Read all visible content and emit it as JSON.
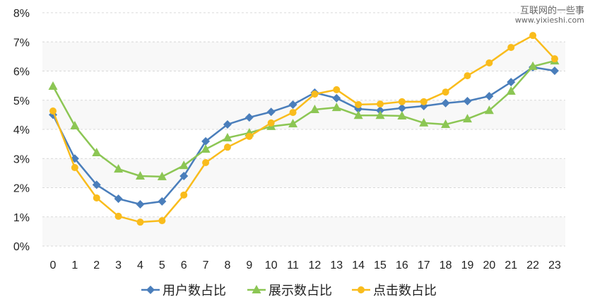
{
  "watermark": {
    "title": "互联网的一些事",
    "url": "www.yixieshi.com"
  },
  "chart_data": {
    "type": "line",
    "title": "",
    "xlabel": "",
    "ylabel": "",
    "categories": [
      "0",
      "1",
      "2",
      "3",
      "4",
      "5",
      "6",
      "7",
      "8",
      "9",
      "10",
      "11",
      "12",
      "13",
      "14",
      "15",
      "16",
      "17",
      "18",
      "19",
      "20",
      "21",
      "22",
      "23"
    ],
    "ylim": [
      0,
      8
    ],
    "yticks": [
      "0%",
      "1%",
      "2%",
      "3%",
      "4%",
      "5%",
      "6%",
      "7%",
      "8%"
    ],
    "grid": true,
    "legend": "bottom",
    "series": [
      {
        "name": "用户数占比",
        "color": "#4a7ebb",
        "marker": "diamond",
        "values": [
          4.5,
          3.0,
          2.1,
          1.62,
          1.43,
          1.53,
          2.4,
          3.59,
          4.17,
          4.41,
          4.6,
          4.85,
          5.26,
          5.07,
          4.7,
          4.65,
          4.73,
          4.8,
          4.9,
          4.97,
          5.14,
          5.62,
          6.13,
          6.01
        ]
      },
      {
        "name": "展示数占比",
        "color": "#8cc654",
        "marker": "triangle",
        "values": [
          5.48,
          4.12,
          3.2,
          2.64,
          2.4,
          2.38,
          2.76,
          3.32,
          3.71,
          3.88,
          4.1,
          4.19,
          4.68,
          4.75,
          4.48,
          4.48,
          4.46,
          4.22,
          4.17,
          4.36,
          4.65,
          5.31,
          6.16,
          6.35
        ]
      },
      {
        "name": "点击数占比",
        "color": "#f9bc1c",
        "marker": "circle",
        "values": [
          4.63,
          2.69,
          1.65,
          1.02,
          0.82,
          0.87,
          1.75,
          2.86,
          3.39,
          3.76,
          4.22,
          4.58,
          5.21,
          5.36,
          4.85,
          4.87,
          4.95,
          4.95,
          5.28,
          5.84,
          6.28,
          6.81,
          7.22,
          6.42
        ]
      }
    ]
  }
}
